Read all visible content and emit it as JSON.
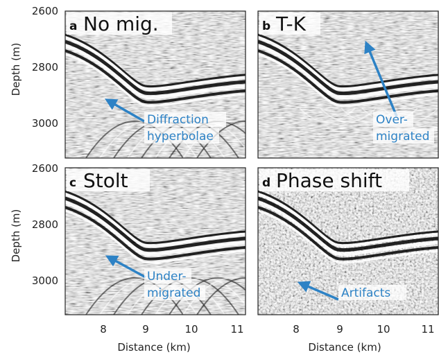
{
  "figure": {
    "ylabel": "Depth (m)",
    "xlabel": "Distance (km)",
    "y_ticks": [
      "2600",
      "2800",
      "3000"
    ],
    "x_ticks": [
      "8",
      "9",
      "10",
      "11"
    ],
    "annotation_color": "#2d82c5"
  },
  "panels": [
    {
      "letter": "a",
      "title": "No mig.",
      "annotation": [
        "Diffraction",
        "hyperbolae"
      ],
      "pattern": "hyperbolae"
    },
    {
      "letter": "b",
      "title": "T-K",
      "annotation": [
        "Over-",
        "migrated"
      ],
      "pattern": "overmigrated"
    },
    {
      "letter": "c",
      "title": "Stolt",
      "annotation": [
        "Under-",
        "migrated"
      ],
      "pattern": "hyperbolae"
    },
    {
      "letter": "d",
      "title": "Phase shift",
      "annotation": [
        "Artifacts"
      ],
      "pattern": "artifacts"
    }
  ]
}
